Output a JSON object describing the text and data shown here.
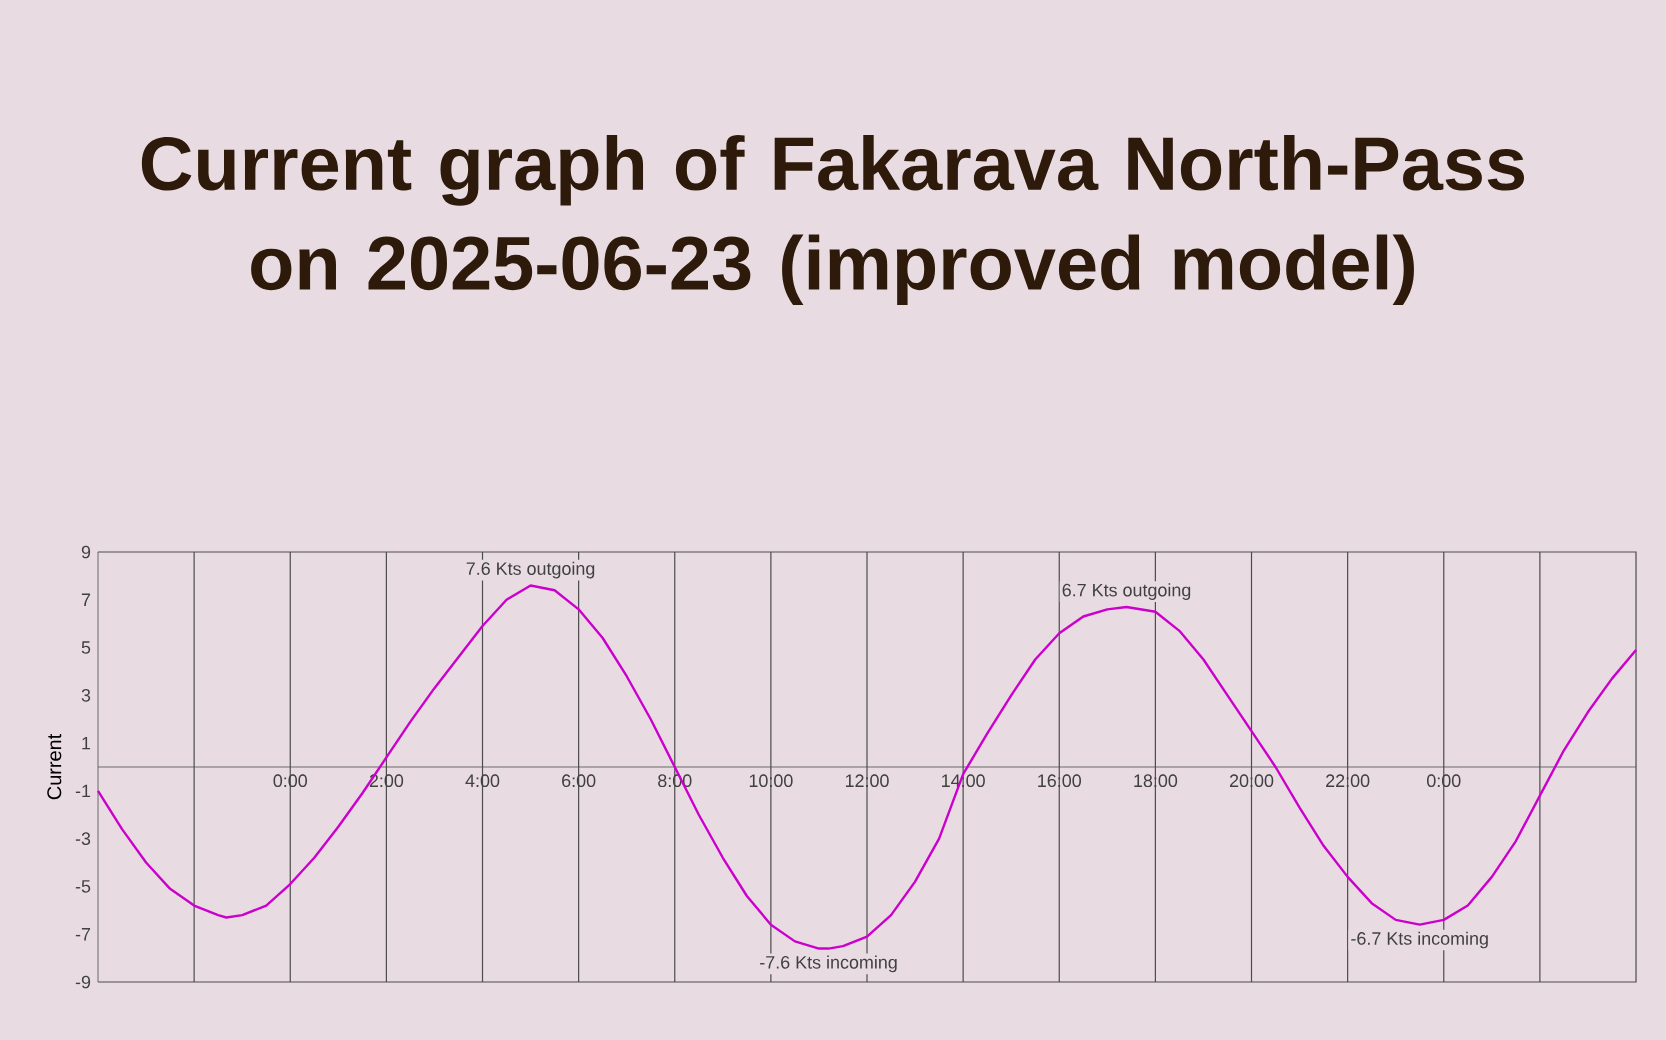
{
  "chart_data": {
    "type": "line",
    "title": "Current graph of Fakarava North-Pass on 2025-06-23 (improved model)",
    "ylabel": "Current",
    "series": [
      {
        "color": "#cc00cc",
        "x": [
          -4,
          -3.5,
          -3,
          -2.5,
          -2,
          -1.5,
          -1.33,
          -1,
          -0.5,
          0,
          0.5,
          1,
          1.5,
          2,
          2.5,
          3,
          3.5,
          4,
          4.5,
          5,
          5.5,
          6,
          6.5,
          7,
          7.5,
          8,
          8.5,
          9,
          9.5,
          10,
          10.5,
          11,
          11.2,
          11.5,
          12,
          12.5,
          13,
          13.5,
          14,
          14.5,
          15,
          15.5,
          16,
          16.5,
          17,
          17.4,
          18,
          18.5,
          19,
          19.5,
          20,
          20.5,
          21,
          21.5,
          22,
          22.5,
          23,
          23.5,
          24,
          24.5,
          25,
          25.5,
          26,
          26.5,
          27,
          27.5,
          28
        ],
        "values": [
          -1.0,
          -2.6,
          -4.0,
          -5.1,
          -5.8,
          -6.2,
          -6.3,
          -6.2,
          -5.8,
          -4.9,
          -3.8,
          -2.5,
          -1.1,
          0.4,
          1.9,
          3.3,
          4.6,
          5.9,
          7.0,
          7.6,
          7.4,
          6.6,
          5.4,
          3.8,
          2.0,
          0.0,
          -2.0,
          -3.8,
          -5.4,
          -6.6,
          -7.3,
          -7.6,
          -7.6,
          -7.5,
          -7.1,
          -6.2,
          -4.8,
          -3.0,
          -0.3,
          1.4,
          3.0,
          4.5,
          5.6,
          6.3,
          6.6,
          6.7,
          6.5,
          5.7,
          4.5,
          3.0,
          1.5,
          0.0,
          -1.7,
          -3.3,
          -4.6,
          -5.7,
          -6.4,
          -6.6,
          -6.4,
          -5.8,
          -4.6,
          -3.1,
          -1.2,
          0.7,
          2.3,
          3.7,
          4.9
        ]
      }
    ],
    "xlim": [
      -4,
      28
    ],
    "xticks": [
      {
        "value": -2,
        "label": null
      },
      {
        "value": 0,
        "label": "0:00"
      },
      {
        "value": 2,
        "label": "2:00"
      },
      {
        "value": 4,
        "label": "4:00"
      },
      {
        "value": 6,
        "label": "6:00"
      },
      {
        "value": 8,
        "label": "8:00"
      },
      {
        "value": 10,
        "label": "10:00"
      },
      {
        "value": 12,
        "label": "12:00"
      },
      {
        "value": 14,
        "label": "14:00"
      },
      {
        "value": 16,
        "label": "16:00"
      },
      {
        "value": 18,
        "label": "18:00"
      },
      {
        "value": 20,
        "label": "20:00"
      },
      {
        "value": 22,
        "label": "22:00"
      },
      {
        "value": 24,
        "label": "0:00"
      },
      {
        "value": 26,
        "label": null
      }
    ],
    "ylim": [
      -9,
      9
    ],
    "yticks": [
      -9,
      -7,
      -5,
      -3,
      -1,
      1,
      3,
      5,
      7,
      9
    ],
    "grid": "x",
    "marker": "none",
    "line_style": "solid",
    "annotations": [
      {
        "text": "7.6 Kts  outgoing",
        "x": 5,
        "y": 7.6
      },
      {
        "text": "-7.6 Kts  incoming",
        "x": 11.2,
        "y": -7.6
      },
      {
        "text": "6.7 Kts  outgoing",
        "x": 17.4,
        "y": 6.7
      },
      {
        "text": "-6.7 Kts  incoming",
        "x": 23.5,
        "y": -6.6
      }
    ]
  }
}
